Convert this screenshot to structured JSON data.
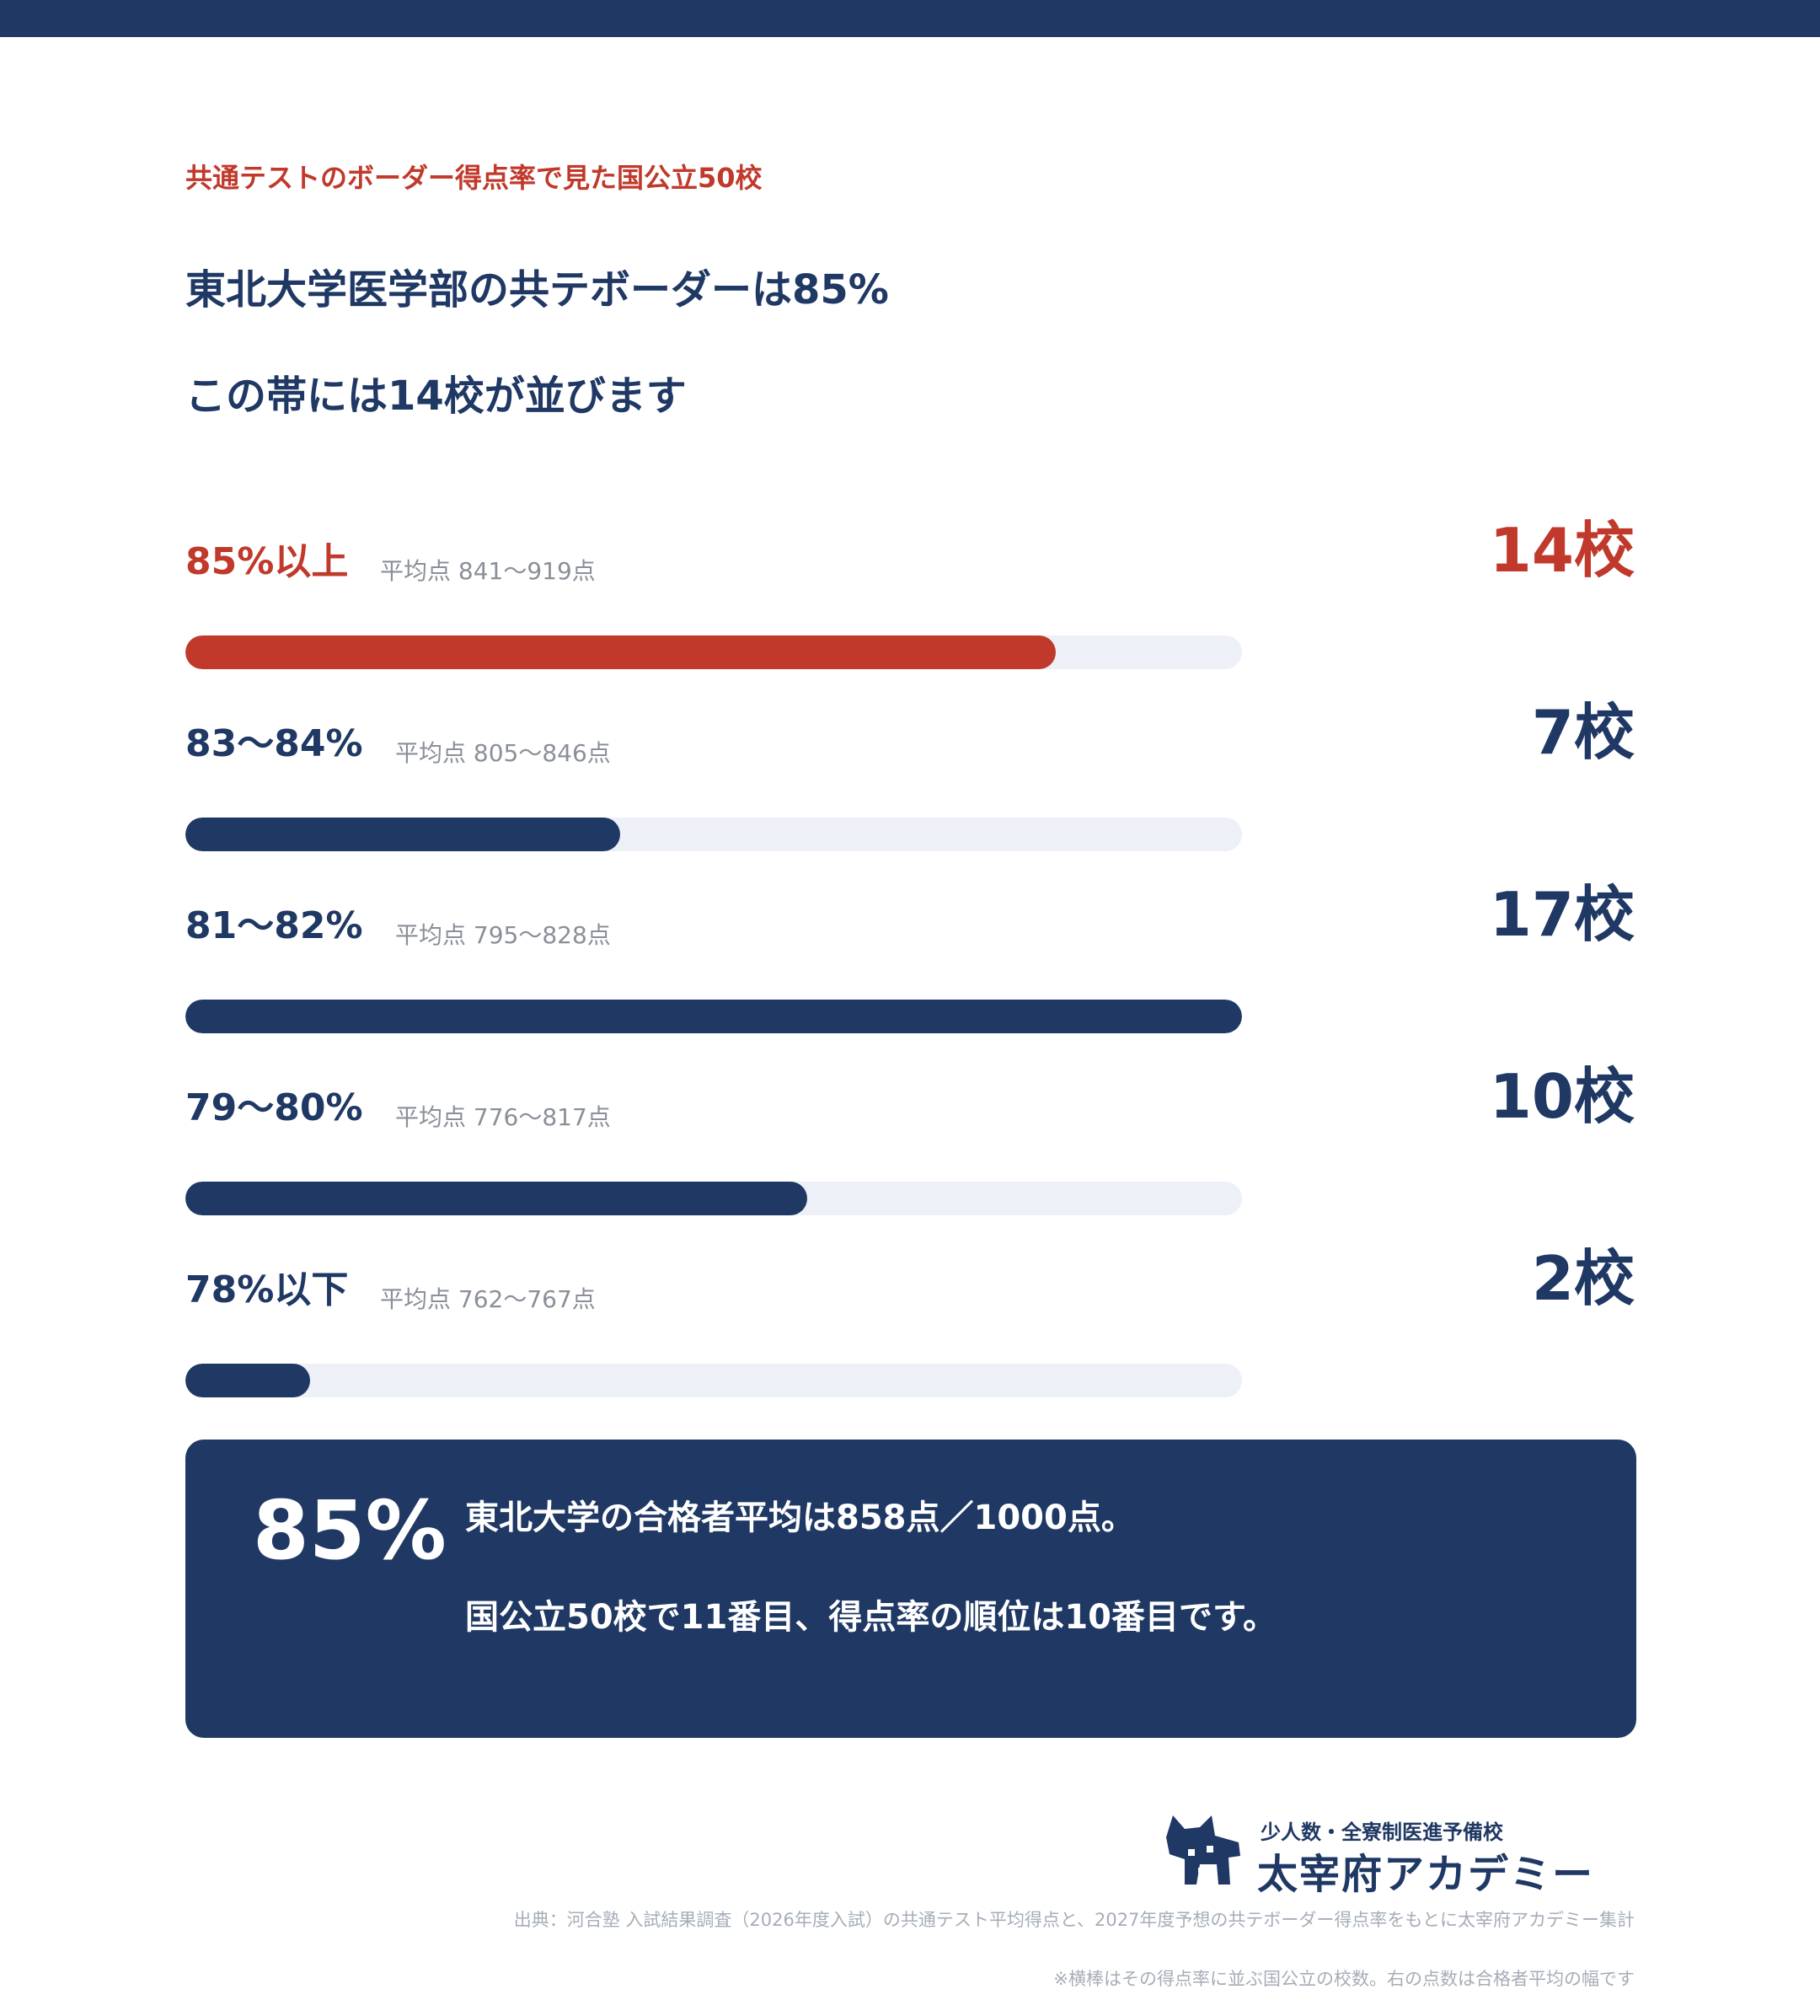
{
  "header": {
    "eyebrow": "共通テストのボーダー得点率で見た国公立50校",
    "headline_1": "東北大学医学部の共テボーダーは85%",
    "headline_2": "この帯には14校が並びます"
  },
  "chart_data": {
    "type": "bar",
    "orientation": "horizontal",
    "categories": [
      "85%以上",
      "83〜84%",
      "81〜82%",
      "79〜80%",
      "78%以下"
    ],
    "values": [
      14,
      7,
      17,
      10,
      2
    ],
    "value_labels": [
      "14校",
      "7校",
      "17校",
      "10校",
      "2校"
    ],
    "average_ranges": [
      "平均点 841〜919点",
      "平均点 805〜846点",
      "平均点 795〜828点",
      "平均点 776〜817点",
      "平均点 762〜767点"
    ],
    "highlight_index": 0,
    "xlim": [
      0,
      17
    ],
    "colors": {
      "highlight": "#c0392b",
      "default": "#1f3864",
      "track": "#edf0f7"
    }
  },
  "callout": {
    "big": "85%",
    "line_1": "東北大学の合格者平均は858点／1000点。",
    "line_2": "国公立50校で11番目、得点率の順位は10番目です。"
  },
  "logo": {
    "tagline": "少人数・全寮制医進予備校",
    "name": "太宰府アカデミー"
  },
  "footer": {
    "source": "出典：河合塾 入試結果調査（2026年度入試）の共通テスト平均得点と、2027年度予想の共テボーダー得点率をもとに太宰府アカデミー集計",
    "note": "※横棒はその得点率に並ぶ国公立の校数。右の点数は合格者平均の幅です"
  },
  "colors": {
    "navy": "#1f3864",
    "red": "#c0392b",
    "muted": "#8a8f99"
  }
}
